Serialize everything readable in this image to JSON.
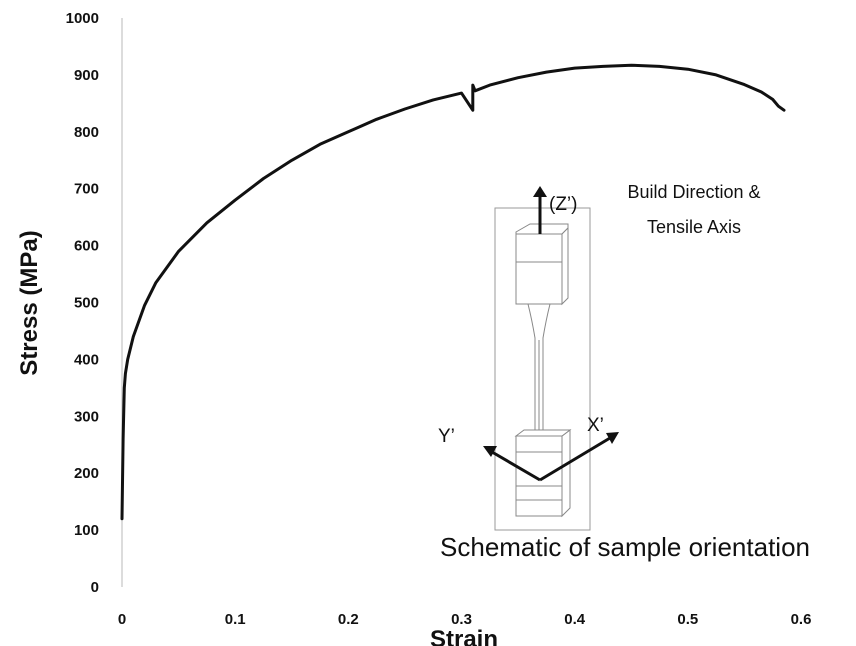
{
  "chart_data": {
    "type": "line",
    "title": "",
    "xlabel": "Strain",
    "ylabel": "Stress (MPa)",
    "xlim": [
      0,
      0.6
    ],
    "ylim": [
      0,
      1000
    ],
    "xticks": [
      "0",
      "0.1",
      "0.2",
      "0.3",
      "0.4",
      "0.5",
      "0.6"
    ],
    "yticks": [
      "0",
      "100",
      "200",
      "300",
      "400",
      "500",
      "600",
      "700",
      "800",
      "900",
      "1000"
    ],
    "grid": false,
    "legend": "none",
    "series": [
      {
        "x": [
          0,
          0.001,
          0.002,
          0.003,
          0.005,
          0.01,
          0.02,
          0.03,
          0.05,
          0.075,
          0.1,
          0.125,
          0.15,
          0.175,
          0.2,
          0.225,
          0.25,
          0.275,
          0.3,
          0.31,
          0.31,
          0.312,
          0.325,
          0.35,
          0.375,
          0.4,
          0.425,
          0.45,
          0.475,
          0.5,
          0.525,
          0.55,
          0.565,
          0.575,
          0.58,
          0.585
        ],
        "y": [
          120,
          260,
          350,
          375,
          400,
          440,
          495,
          535,
          590,
          640,
          680,
          718,
          750,
          778,
          800,
          822,
          840,
          856,
          868,
          838,
          882,
          872,
          882,
          895,
          905,
          912,
          915,
          917,
          915,
          910,
          900,
          883,
          870,
          857,
          845,
          838
        ],
        "color": "#111111"
      }
    ],
    "annotations": {
      "arrow_label": "(Z’)",
      "build_direction_line1": "Build Direction &",
      "build_direction_line2": "Tensile Axis",
      "y_axis_label": "Y’",
      "x_axis_label": "X’",
      "caption": "Schematic of sample orientation"
    }
  }
}
